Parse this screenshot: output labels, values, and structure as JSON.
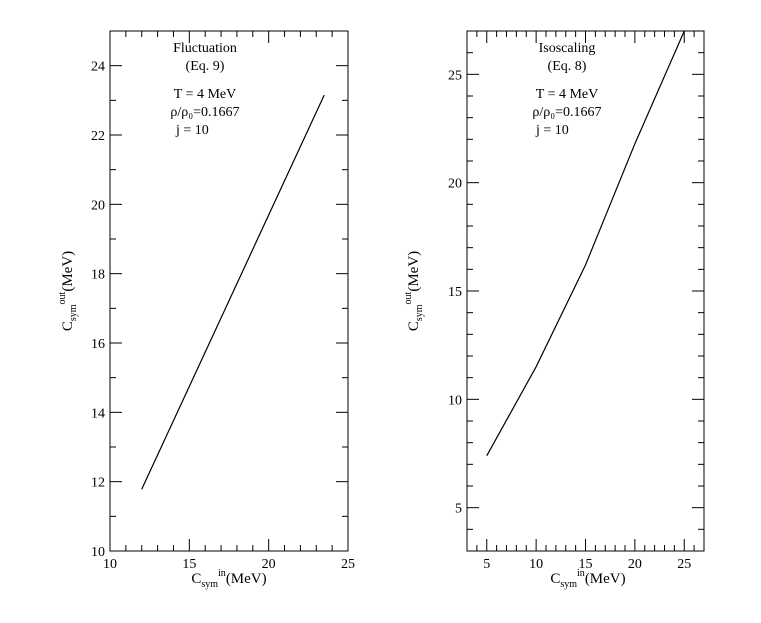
{
  "chart_data": [
    {
      "type": "line",
      "xlabel": "C_sym^in(MeV)",
      "ylabel": "C_sym^out(MeV)",
      "xlim": [
        10,
        25
      ],
      "ylim": [
        10,
        25
      ],
      "xticks": [
        10,
        15,
        20,
        25
      ],
      "yticks": [
        10,
        12,
        14,
        16,
        18,
        20,
        22,
        24
      ],
      "x_minor_step": 1,
      "y_minor_step": 1,
      "grid": false,
      "annotations": [
        "Fluctuation",
        "(Eq. 9)",
        "T = 4 MeV",
        "ρ/ρ₀=0.1667",
        "j = 10"
      ],
      "series": [
        {
          "x": [
            12.0,
            23.5
          ],
          "y": [
            11.78,
            23.15
          ]
        }
      ]
    },
    {
      "type": "line",
      "xlabel": "C_sym^in(MeV)",
      "ylabel": "C_sym^out(MeV)",
      "xlim": [
        3,
        27
      ],
      "ylim": [
        3,
        27
      ],
      "xticks": [
        5,
        10,
        15,
        20,
        25
      ],
      "yticks": [
        5,
        10,
        15,
        20,
        25
      ],
      "x_minor_step": 1,
      "y_minor_step": 1,
      "grid": false,
      "annotations": [
        "Isoscaling",
        "(Eq. 8)",
        "T = 4 MeV",
        "ρ/ρ₀=0.1667",
        "j = 10"
      ],
      "series": [
        {
          "x": [
            5,
            10,
            15,
            20,
            25
          ],
          "y": [
            7.4,
            11.5,
            16.2,
            21.8,
            27.0
          ]
        }
      ]
    }
  ]
}
